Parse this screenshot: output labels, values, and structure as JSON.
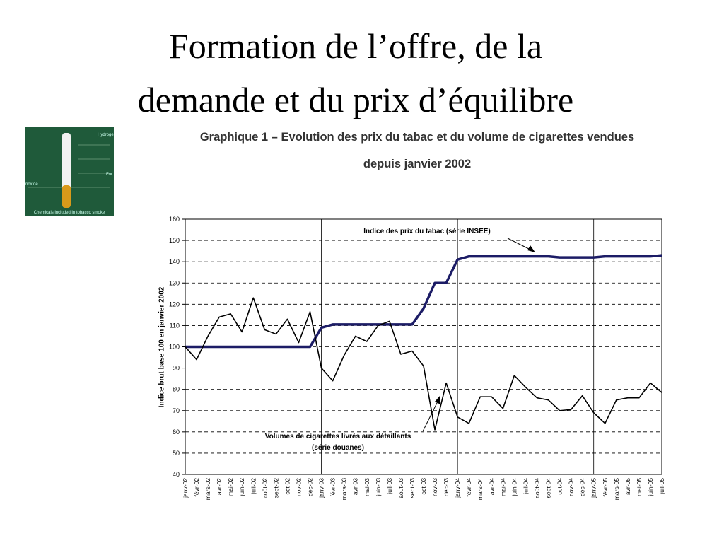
{
  "slide_title": [
    "Formation de l’offre, de la",
    "demande et du prix d’équilibre"
  ],
  "image_texts": [
    "Hydroge",
    "For",
    "noxide",
    "Chemicals included in tobacco smoke"
  ],
  "chart_data": {
    "type": "line",
    "title": [
      "Graphique 1 – Evolution des prix du tabac et du volume de cigarettes vendues",
      "depuis janvier 2002"
    ],
    "ylabel": "Indice brut base 100 en janvier 2002",
    "categories": [
      "janv-02",
      "févr-02",
      "mars-02",
      "avr-02",
      "mai-02",
      "juin-02",
      "juil-02",
      "août-02",
      "sept-02",
      "oct-02",
      "nov-02",
      "déc-02",
      "janv-03",
      "févr-03",
      "mars-03",
      "avr-03",
      "mai-03",
      "juin-03",
      "juil-03",
      "août-03",
      "sept-03",
      "oct-03",
      "nov-03",
      "déc-03",
      "janv-04",
      "févr-04",
      "mars-04",
      "avr-04",
      "mai-04",
      "juin-04",
      "juil-04",
      "août-04",
      "sept-04",
      "oct-04",
      "nov-04",
      "déc-04",
      "janv-05",
      "févr-05",
      "mars-05",
      "avr-05",
      "mai-05",
      "juin-05",
      "juil-05"
    ],
    "series": [
      {
        "color": "#1c1c66",
        "width": 3.5,
        "values": [
          100,
          100,
          100,
          100,
          100,
          100,
          100,
          100,
          100,
          100,
          100,
          100,
          109,
          110.5,
          110.5,
          110.5,
          110.5,
          110.5,
          110.5,
          110.5,
          110.5,
          118,
          130,
          130,
          141,
          142.5,
          142.5,
          142.5,
          142.5,
          142.5,
          142.5,
          142.5,
          142.5,
          142,
          142,
          142,
          142,
          142.5,
          142.5,
          142.5,
          142.5,
          142.5,
          143
        ]
      },
      {
        "color": "#000000",
        "width": 1.6,
        "values": [
          100,
          94,
          105,
          114,
          115.5,
          107,
          123,
          108,
          106,
          113,
          102,
          116.5,
          90,
          84,
          96,
          105,
          102.5,
          110,
          112,
          96.5,
          98,
          91,
          61,
          83,
          67,
          64,
          76.5,
          76.5,
          71,
          86.5,
          81,
          76,
          75,
          70,
          70.5,
          77,
          69,
          64,
          75,
          76,
          76,
          83,
          78.5
        ]
      }
    ],
    "annotations": [
      "Indice des prix du tabac (série INSEE)",
      "Volumes de cigarettes livrés aux détaillants",
      "(série douanes)"
    ],
    "ylim": [
      40,
      160
    ],
    "yticks": [
      40,
      50,
      60,
      70,
      80,
      90,
      100,
      110,
      120,
      130,
      140,
      150,
      160
    ],
    "grid": true
  }
}
